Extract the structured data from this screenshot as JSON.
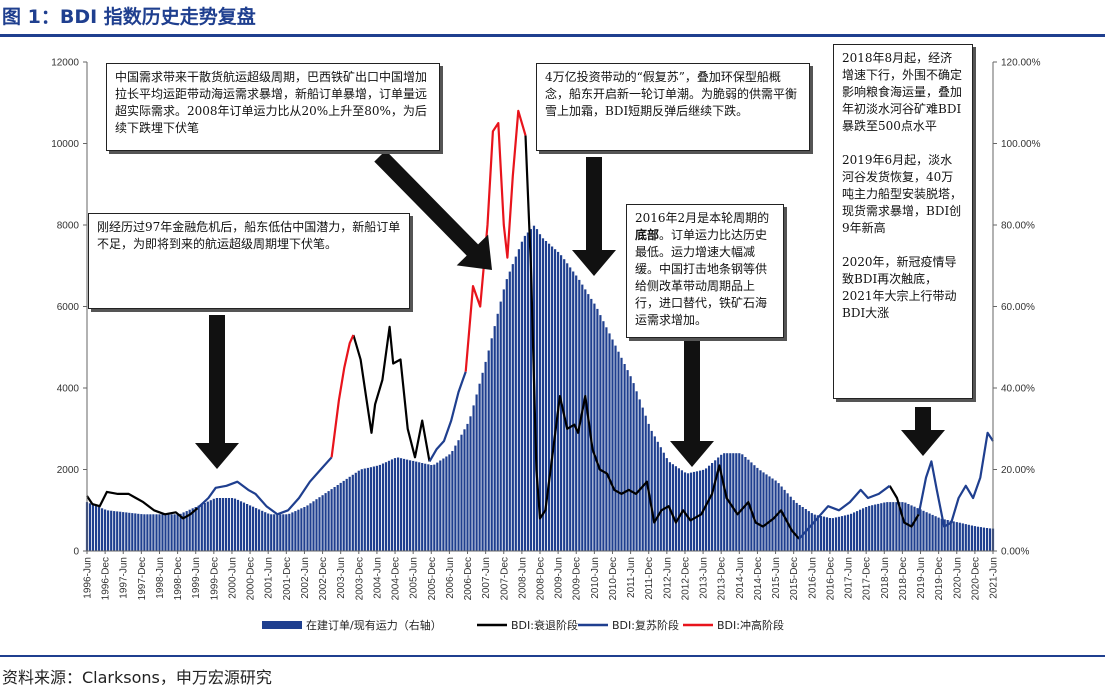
{
  "title": "图 1：BDI 指数历史走势复盘",
  "source": "资料来源：Clarksons，申万宏源研究",
  "annotations": [
    {
      "id": "a1",
      "text": "刚经历过97年金融危机后，船东低估中国潜力，新船订单不足，为即将到来的航运超级周期埋下伏笔。"
    },
    {
      "id": "a2",
      "text": "中国需求带来干散货航运超级周期，巴西铁矿出口中国增加拉长平均运距带动海运需求暴增，新船订单暴增，订单量远超实际需求。2008年订单运力比从20%上升至80%，为后续下跌埋下伏笔"
    },
    {
      "id": "a3",
      "text": "4万亿投资带动的“假复苏”，叠加环保型船概念，船东开启新一轮订单潮。为脆弱的供需平衡雪上加霜，BDI短期反弹后继续下跌。"
    },
    {
      "id": "a4_pre",
      "text": "2016年2月是本轮周期的"
    },
    {
      "id": "a4_bold",
      "text": "底部"
    },
    {
      "id": "a4_post",
      "text": "。订单运力比达历史最低。运力增速大幅减缓。中国打击地条钢等供给侧改革带动周期品上行，进口替代，铁矿石海运需求增加。"
    },
    {
      "id": "a5",
      "text": "2018年8月起，经济增速下行，外围不确定影响粮食海运量，叠加年初淡水河谷矿难BDI暴跌至500点水平\n\n2019年6月起，淡水河谷发货恢复，40万吨主力船型安装脱塔，现货需求暴增，BDI创9年新高\n\n2020年，新冠疫情导致BDI再次触底，2021年大宗上行带动BDI大涨"
    }
  ],
  "colors": {
    "title": "#1f3f8f",
    "bar": "#1f3f8f",
    "recession": "#000000",
    "recovery": "#1f3f8f",
    "surge": "#e8141c"
  },
  "chart_data": {
    "type": "bar+line",
    "legend": [
      "在建订单/现有运力（右轴）",
      "BDI:衰退阶段",
      "BDI:复苏阶段",
      "BDI:冲高阶段"
    ],
    "legend_position": "bottom",
    "y_left": {
      "min": 0,
      "max": 12000,
      "ticks": [
        "0",
        "2000",
        "4000",
        "6000",
        "8000",
        "10000",
        "12000"
      ]
    },
    "y_right": {
      "min": 0,
      "max": 1.2,
      "ticks": [
        "0.00%",
        "20.00%",
        "40.00%",
        "60.00%",
        "80.00%",
        "100.00%",
        "120.00%"
      ]
    },
    "x_ticks": [
      "1996-Jun",
      "1996-Dec",
      "1997-Jun",
      "1997-Dec",
      "1998-Jun",
      "1998-Dec",
      "1999-Jun",
      "1999-Dec",
      "2000-Jun",
      "2000-Dec",
      "2001-Jun",
      "2001-Dec",
      "2002-Jun",
      "2002-Dec",
      "2003-Jun",
      "2003-Dec",
      "2004-Jun",
      "2004-Dec",
      "2005-Jun",
      "2005-Dec",
      "2006-Jun",
      "2006-Dec",
      "2007-Jun",
      "2007-Dec",
      "2008-Jun",
      "2008-Dec",
      "2009-Jun",
      "2009-Dec",
      "2010-Jun",
      "2010-Dec",
      "2011-Jun",
      "2011-Dec",
      "2012-Jun",
      "2012-Dec",
      "2013-Jun",
      "2013-Dec",
      "2014-Jun",
      "2014-Dec",
      "2015-Jun",
      "2015-Dec",
      "2016-Jun",
      "2016-Dec",
      "2017-Jun",
      "2017-Dec",
      "2018-Jun",
      "2018-Dec",
      "2019-Jun",
      "2019-Dec",
      "2020-Jun",
      "2020-Dec",
      "2021-Jun"
    ],
    "orderbook_ratio": [
      [
        1996.45,
        0.12
      ],
      [
        1997.0,
        0.1
      ],
      [
        1998.0,
        0.09
      ],
      [
        1999.0,
        0.09
      ],
      [
        1999.5,
        0.11
      ],
      [
        2000.0,
        0.13
      ],
      [
        2000.5,
        0.13
      ],
      [
        2001.0,
        0.11
      ],
      [
        2001.5,
        0.09
      ],
      [
        2002.0,
        0.09
      ],
      [
        2002.5,
        0.11
      ],
      [
        2003.0,
        0.14
      ],
      [
        2003.5,
        0.17
      ],
      [
        2004.0,
        0.2
      ],
      [
        2004.5,
        0.21
      ],
      [
        2005.0,
        0.23
      ],
      [
        2005.5,
        0.22
      ],
      [
        2006.0,
        0.21
      ],
      [
        2006.5,
        0.24
      ],
      [
        2007.0,
        0.32
      ],
      [
        2007.5,
        0.48
      ],
      [
        2008.0,
        0.66
      ],
      [
        2008.5,
        0.77
      ],
      [
        2008.8,
        0.8
      ],
      [
        2009.0,
        0.77
      ],
      [
        2009.5,
        0.73
      ],
      [
        2010.0,
        0.67
      ],
      [
        2010.5,
        0.6
      ],
      [
        2011.0,
        0.51
      ],
      [
        2011.5,
        0.42
      ],
      [
        2012.0,
        0.3
      ],
      [
        2012.5,
        0.22
      ],
      [
        2013.0,
        0.19
      ],
      [
        2013.5,
        0.2
      ],
      [
        2014.0,
        0.24
      ],
      [
        2014.5,
        0.24
      ],
      [
        2015.0,
        0.2
      ],
      [
        2015.5,
        0.17
      ],
      [
        2016.0,
        0.12
      ],
      [
        2016.5,
        0.09
      ],
      [
        2017.0,
        0.08
      ],
      [
        2017.5,
        0.09
      ],
      [
        2018.0,
        0.11
      ],
      [
        2018.5,
        0.12
      ],
      [
        2019.0,
        0.12
      ],
      [
        2019.5,
        0.1
      ],
      [
        2020.0,
        0.08
      ],
      [
        2020.5,
        0.07
      ],
      [
        2021.0,
        0.06
      ],
      [
        2021.4,
        0.055
      ]
    ],
    "bdi_recession": [
      [
        1996.45,
        1350
      ],
      [
        1996.6,
        1150
      ],
      [
        1996.8,
        1100
      ],
      [
        1997.0,
        1450
      ],
      [
        1997.3,
        1400
      ],
      [
        1997.6,
        1400
      ],
      [
        1997.8,
        1300
      ],
      [
        1998.0,
        1200
      ],
      [
        1998.3,
        1000
      ],
      [
        1998.6,
        900
      ],
      [
        1998.9,
        950
      ],
      [
        1999.1,
        800
      ],
      [
        1999.3,
        900
      ],
      [
        1999.5,
        1050
      ]
    ],
    "bdi_recession2": [
      [
        2003.8,
        5300
      ],
      [
        2004.0,
        4700
      ],
      [
        2004.15,
        3800
      ],
      [
        2004.3,
        2900
      ],
      [
        2004.4,
        3600
      ],
      [
        2004.6,
        4200
      ],
      [
        2004.8,
        5500
      ],
      [
        2004.9,
        4600
      ],
      [
        2005.1,
        4700
      ],
      [
        2005.3,
        3000
      ],
      [
        2005.5,
        2300
      ],
      [
        2005.7,
        3200
      ],
      [
        2005.9,
        2200
      ]
    ],
    "bdi_recession3": [
      [
        2008.55,
        10200
      ],
      [
        2008.7,
        7000
      ],
      [
        2008.85,
        2000
      ],
      [
        2008.95,
        800
      ],
      [
        2009.1,
        1000
      ],
      [
        2009.3,
        2400
      ],
      [
        2009.5,
        3800
      ],
      [
        2009.7,
        3000
      ],
      [
        2009.9,
        3100
      ],
      [
        2010.0,
        2900
      ],
      [
        2010.2,
        3800
      ],
      [
        2010.4,
        2500
      ],
      [
        2010.6,
        2000
      ],
      [
        2010.8,
        1900
      ],
      [
        2011.0,
        1500
      ],
      [
        2011.2,
        1400
      ],
      [
        2011.4,
        1500
      ],
      [
        2011.6,
        1400
      ],
      [
        2011.9,
        1700
      ],
      [
        2012.1,
        700
      ],
      [
        2012.3,
        1000
      ],
      [
        2012.5,
        1100
      ],
      [
        2012.7,
        700
      ],
      [
        2012.9,
        1000
      ],
      [
        2013.1,
        750
      ],
      [
        2013.4,
        900
      ],
      [
        2013.7,
        1400
      ],
      [
        2013.9,
        2100
      ],
      [
        2014.1,
        1300
      ],
      [
        2014.4,
        900
      ],
      [
        2014.7,
        1200
      ],
      [
        2014.9,
        700
      ],
      [
        2015.1,
        600
      ],
      [
        2015.4,
        800
      ],
      [
        2015.6,
        1000
      ],
      [
        2015.9,
        500
      ],
      [
        2016.1,
        300
      ]
    ],
    "bdi_recession4": [
      [
        2018.6,
        1600
      ],
      [
        2018.8,
        1300
      ],
      [
        2018.9,
        1000
      ],
      [
        2019.0,
        700
      ],
      [
        2019.2,
        600
      ],
      [
        2019.4,
        900
      ]
    ],
    "bdi_recovery": [
      [
        1999.5,
        1050
      ],
      [
        1999.8,
        1300
      ],
      [
        2000.0,
        1550
      ],
      [
        2000.3,
        1600
      ],
      [
        2000.6,
        1700
      ],
      [
        2000.9,
        1500
      ],
      [
        2001.1,
        1400
      ],
      [
        2001.4,
        1100
      ],
      [
        2001.7,
        900
      ],
      [
        2002.0,
        1000
      ],
      [
        2002.3,
        1300
      ],
      [
        2002.6,
        1700
      ],
      [
        2002.9,
        2000
      ],
      [
        2003.2,
        2300
      ]
    ],
    "bdi_recovery2": [
      [
        2005.9,
        2200
      ],
      [
        2006.1,
        2500
      ],
      [
        2006.3,
        2700
      ],
      [
        2006.5,
        3200
      ],
      [
        2006.7,
        3900
      ],
      [
        2006.9,
        4400
      ]
    ],
    "bdi_recovery3": [
      [
        2016.1,
        300
      ],
      [
        2016.4,
        600
      ],
      [
        2016.7,
        900
      ],
      [
        2016.9,
        1100
      ],
      [
        2017.2,
        1000
      ],
      [
        2017.5,
        1200
      ],
      [
        2017.8,
        1500
      ],
      [
        2018.0,
        1300
      ],
      [
        2018.3,
        1400
      ],
      [
        2018.6,
        1600
      ]
    ],
    "bdi_recovery4": [
      [
        2019.4,
        900
      ],
      [
        2019.6,
        1800
      ],
      [
        2019.75,
        2200
      ],
      [
        2019.9,
        1500
      ],
      [
        2020.1,
        600
      ],
      [
        2020.3,
        700
      ],
      [
        2020.5,
        1300
      ],
      [
        2020.7,
        1600
      ],
      [
        2020.9,
        1300
      ],
      [
        2021.1,
        1800
      ],
      [
        2021.3,
        2900
      ],
      [
        2021.45,
        2700
      ]
    ],
    "bdi_surge": [
      [
        2003.2,
        2300
      ],
      [
        2003.4,
        3700
      ],
      [
        2003.55,
        4500
      ],
      [
        2003.7,
        5100
      ],
      [
        2003.8,
        5300
      ]
    ],
    "bdi_surge2": [
      [
        2006.9,
        4400
      ],
      [
        2007.1,
        6500
      ],
      [
        2007.3,
        6000
      ],
      [
        2007.5,
        8000
      ],
      [
        2007.65,
        10300
      ],
      [
        2007.8,
        10500
      ],
      [
        2007.95,
        8000
      ],
      [
        2008.05,
        7200
      ],
      [
        2008.2,
        9200
      ],
      [
        2008.35,
        10800
      ],
      [
        2008.55,
        10200
      ]
    ]
  }
}
